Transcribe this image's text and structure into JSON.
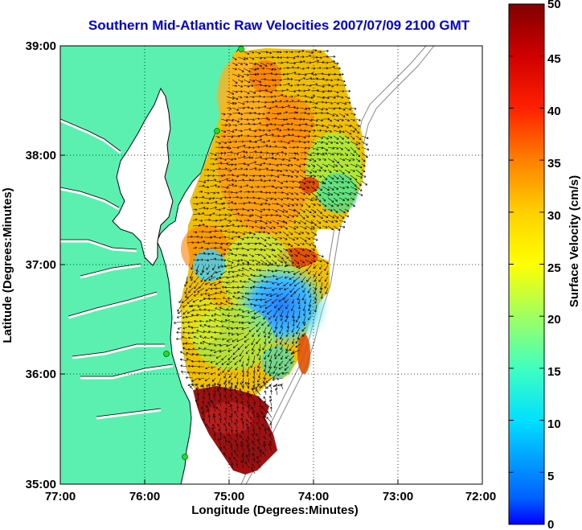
{
  "title": "Southern Mid-Atlantic Raw Velocities 2007/07/09 2100 GMT",
  "xlabel": "Longitude (Degrees:Minutes)",
  "ylabel": "Latitude (Degrees:Minutes)",
  "x_ticks": [
    "77:00",
    "76:00",
    "75:00",
    "74:00",
    "73:00",
    "72:00"
  ],
  "y_ticks": [
    "39:00",
    "38:00",
    "37:00",
    "36:00",
    "35:00"
  ],
  "colorbar": {
    "label": "Surface Velocity (cm/s)",
    "ticks": [
      "50",
      "45",
      "40",
      "35",
      "30",
      "25",
      "20",
      "15",
      "10",
      "5",
      "0"
    ],
    "range": [
      0,
      50
    ],
    "colormap": "jet"
  },
  "colors": {
    "land": "#5cf0b0",
    "ocean": "#ffffff",
    "title": "#0000ee",
    "station": "#22dd22"
  },
  "map": {
    "extent_lon": [
      -77,
      -72
    ],
    "extent_lat": [
      35,
      39
    ],
    "grid": "dotted",
    "stations": 5
  }
}
